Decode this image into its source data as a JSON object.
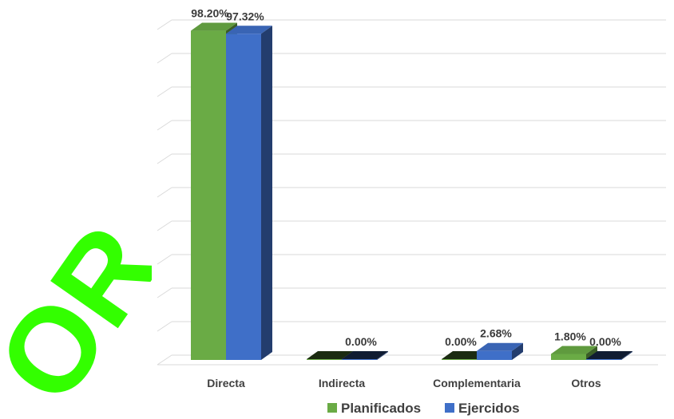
{
  "chart_data": {
    "type": "bar",
    "categories": [
      "Directa",
      "Indirecta",
      "Complementaria",
      "Otros"
    ],
    "series": [
      {
        "name": "Planificados",
        "color": "#6aab45",
        "values": [
          98.2,
          0.0,
          0.0,
          1.8
        ],
        "labels": [
          "98.20%",
          "",
          "0.00%",
          "1.80%"
        ]
      },
      {
        "name": "Ejercidos",
        "color": "#3f6fc8",
        "values": [
          97.32,
          0.0,
          2.68,
          0.0
        ],
        "labels": [
          "97.32%",
          "0.00%",
          "2.68%",
          "0.00%"
        ]
      }
    ],
    "ylim": [
      0,
      100
    ],
    "grid": true,
    "legend_position": "bottom",
    "watermark": "OR"
  }
}
